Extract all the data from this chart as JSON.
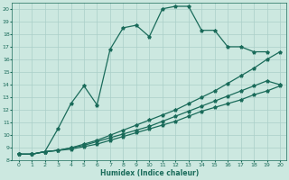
{
  "xlabel": "Humidex (Indice chaleur)",
  "bg_color": "#cce8e0",
  "grid_color": "#aacfc8",
  "line_color": "#1a6b5a",
  "xlim": [
    -0.5,
    20.5
  ],
  "ylim": [
    8,
    20.5
  ],
  "xticks": [
    0,
    1,
    2,
    3,
    4,
    5,
    6,
    7,
    8,
    9,
    10,
    11,
    12,
    13,
    14,
    15,
    16,
    17,
    18,
    19,
    20
  ],
  "yticks": [
    8,
    9,
    10,
    11,
    12,
    13,
    14,
    15,
    16,
    17,
    18,
    19,
    20
  ],
  "line1_x": [
    0,
    1,
    2,
    3,
    4,
    5,
    6,
    7,
    8,
    9,
    10,
    11,
    12,
    13,
    14,
    15,
    16,
    17,
    18,
    19
  ],
  "line1_y": [
    8.5,
    8.5,
    8.7,
    10.5,
    12.5,
    13.9,
    12.4,
    16.8,
    18.5,
    18.7,
    17.8,
    20.0,
    20.2,
    20.2,
    18.3,
    18.3,
    17.0,
    17.0,
    16.6,
    16.6
  ],
  "line2_x": [
    0,
    1,
    2,
    3,
    4,
    5,
    6,
    7,
    8,
    9,
    10,
    11,
    12,
    13,
    14,
    15,
    16,
    17,
    18,
    19,
    20
  ],
  "line2_y": [
    8.5,
    8.5,
    8.7,
    8.8,
    9.0,
    9.3,
    9.6,
    10.0,
    10.4,
    10.8,
    11.2,
    11.6,
    12.0,
    12.5,
    13.0,
    13.5,
    14.1,
    14.7,
    15.3,
    16.0,
    16.6
  ],
  "line3_x": [
    0,
    1,
    2,
    3,
    4,
    5,
    6,
    7,
    8,
    9,
    10,
    11,
    12,
    13,
    14,
    15,
    16,
    17,
    18,
    19,
    20
  ],
  "line3_y": [
    8.5,
    8.5,
    8.7,
    8.8,
    9.0,
    9.2,
    9.5,
    9.8,
    10.1,
    10.4,
    10.7,
    11.1,
    11.5,
    11.9,
    12.3,
    12.7,
    13.1,
    13.5,
    13.9,
    14.3,
    14.0
  ],
  "line4_x": [
    0,
    1,
    2,
    3,
    4,
    5,
    6,
    7,
    8,
    9,
    10,
    11,
    12,
    13,
    14,
    15,
    16,
    17,
    18,
    19,
    20
  ],
  "line4_y": [
    8.5,
    8.5,
    8.7,
    8.8,
    8.9,
    9.1,
    9.3,
    9.6,
    9.9,
    10.2,
    10.5,
    10.8,
    11.1,
    11.5,
    11.9,
    12.2,
    12.5,
    12.8,
    13.2,
    13.5,
    13.9
  ]
}
